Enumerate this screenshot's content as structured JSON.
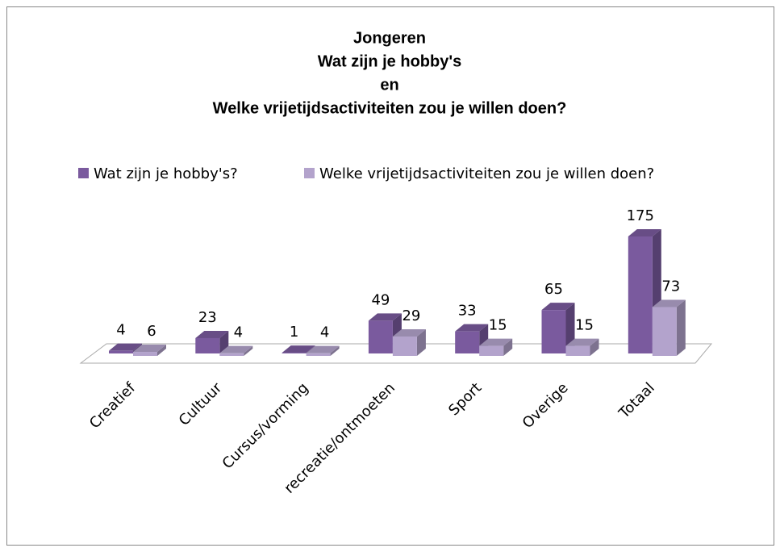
{
  "chart_data": {
    "type": "bar",
    "title": [
      "Jongeren",
      "Wat zijn je hobby's",
      "en",
      "Welke vrijetijdsactiviteiten zou je willen doen?"
    ],
    "categories": [
      "Creatief",
      "Cultuur",
      "Cursus/vorming",
      "recreatie/ontmoeten",
      "Sport",
      "Overige",
      "Totaal"
    ],
    "series": [
      {
        "name": "Wat zijn je hobby's?",
        "color": "#7a5a9e",
        "values": [
          4,
          23,
          1,
          49,
          33,
          65,
          175
        ]
      },
      {
        "name": "Welke vrijetijdsactiviteiten zou je willen doen?",
        "color": "#b3a3cc",
        "values": [
          6,
          4,
          4,
          29,
          15,
          15,
          73
        ]
      }
    ]
  }
}
